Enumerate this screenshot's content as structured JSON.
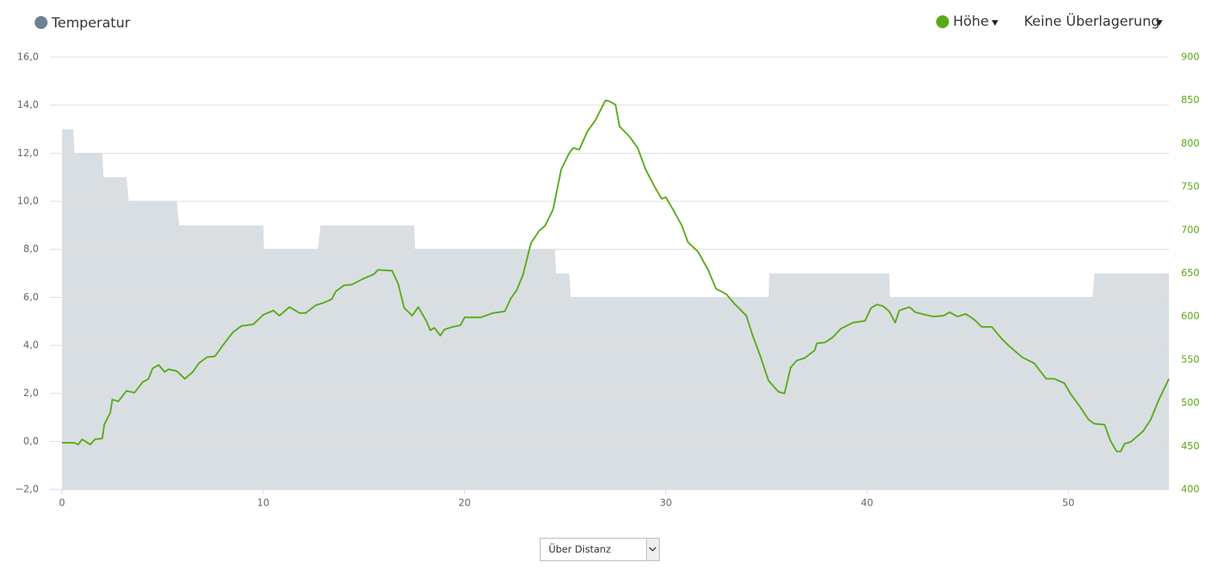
{
  "chart_data": {
    "type": "line",
    "xlim": [
      0,
      55
    ],
    "xticks": [
      0,
      10,
      20,
      30,
      40,
      50
    ],
    "ylim": [
      -2,
      16
    ],
    "yticks": [
      {
        "value": -2,
        "label": "−2,0"
      },
      {
        "value": 0,
        "label": "0,0"
      },
      {
        "value": 2,
        "label": "2,0"
      },
      {
        "value": 4,
        "label": "4,0"
      },
      {
        "value": 6,
        "label": "6,0"
      },
      {
        "value": 8,
        "label": "8,0"
      },
      {
        "value": 10,
        "label": "10,0"
      },
      {
        "value": 12,
        "label": "12,0"
      },
      {
        "value": 14,
        "label": "14,0"
      },
      {
        "value": 16,
        "label": "16,0"
      }
    ],
    "y2lim": [
      400,
      900
    ],
    "y2ticks": [
      400,
      450,
      500,
      550,
      600,
      650,
      700,
      750,
      800,
      850,
      900
    ],
    "grid": true,
    "series": [
      {
        "name": "Temperatur",
        "type": "area",
        "color": "#6e8191",
        "fill": "#d9dee3",
        "x": [
          0,
          0.56,
          0.62,
          2.0,
          2.06,
          3.2,
          3.32,
          5.7,
          5.82,
          10.0,
          10.04,
          12.72,
          12.84,
          17.5,
          17.54,
          24.5,
          24.54,
          25.2,
          25.28,
          35.1,
          35.14,
          41.1,
          41.14,
          51.2,
          51.3,
          55
        ],
        "values": [
          13,
          13,
          12,
          12,
          11,
          11,
          10,
          10,
          9,
          9,
          8,
          8,
          9,
          9,
          8,
          8,
          7,
          7,
          6,
          6,
          7,
          7,
          6,
          6,
          7,
          7
        ]
      },
      {
        "name": "Höhe",
        "color": "#5aab19",
        "axis": "y2",
        "x": [
          0,
          0.6,
          0.8,
          1.0,
          1.4,
          1.64,
          2.0,
          2.1,
          2.4,
          2.5,
          2.8,
          3.2,
          3.6,
          4.0,
          4.3,
          4.5,
          4.8,
          5.1,
          5.3,
          5.7,
          6.1,
          6.5,
          6.8,
          7.2,
          7.6,
          8.0,
          8.5,
          8.9,
          9.5,
          10.0,
          10.5,
          10.8,
          11.1,
          11.3,
          11.8,
          12.1,
          12.6,
          13.0,
          13.4,
          13.6,
          14.0,
          14.4,
          14.9,
          15.5,
          15.7,
          16.4,
          16.7,
          17.0,
          17.4,
          17.7,
          18.1,
          18.3,
          18.5,
          18.8,
          19.0,
          19.4,
          19.8,
          20.0,
          20.8,
          21.4,
          22.0,
          22.3,
          22.6,
          22.9,
          23.3,
          23.7,
          24.0,
          24.4,
          24.8,
          25.2,
          25.4,
          25.7,
          26.1,
          26.5,
          27.0,
          27.2,
          27.5,
          27.7,
          28.2,
          28.6,
          29.0,
          29.4,
          29.8,
          30.0,
          30.4,
          30.8,
          31.1,
          31.6,
          32.1,
          32.5,
          33.0,
          33.4,
          34.0,
          34.3,
          34.7,
          35.1,
          35.4,
          35.6,
          35.9,
          36.2,
          36.5,
          36.9,
          37.4,
          37.5,
          37.9,
          38.3,
          38.7,
          39.3,
          39.9,
          40.2,
          40.5,
          40.8,
          41.1,
          41.4,
          41.6,
          42.1,
          42.4,
          42.9,
          43.3,
          43.8,
          44.1,
          44.5,
          44.9,
          45.3,
          45.7,
          46.2,
          46.7,
          47.1,
          47.7,
          48.3,
          48.9,
          49.3,
          49.8,
          50.1,
          50.6,
          51.0,
          51.3,
          51.8,
          52.1,
          52.4,
          52.6,
          52.8,
          53.1,
          53.7,
          54.1,
          54.5,
          55.0
        ],
        "values": [
          454,
          454,
          452,
          458,
          452,
          458,
          459,
          475,
          489,
          504,
          502,
          514,
          512,
          524,
          528,
          540,
          544,
          536,
          539,
          537,
          528,
          536,
          546,
          553,
          554,
          567,
          582,
          589,
          591,
          602,
          607,
          601,
          607,
          611,
          604,
          604,
          613,
          616,
          620,
          629,
          636,
          637,
          643,
          649,
          654,
          653,
          638,
          610,
          601,
          611,
          595,
          584,
          587,
          578,
          585,
          588,
          590,
          599,
          599,
          604,
          606,
          621,
          631,
          648,
          685,
          699,
          705,
          724,
          770,
          789,
          795,
          793,
          814,
          827,
          850,
          849,
          845,
          820,
          808,
          795,
          770,
          752,
          736,
          738,
          722,
          705,
          686,
          675,
          654,
          632,
          626,
          615,
          601,
          579,
          554,
          526,
          518,
          513,
          511,
          541,
          549,
          552,
          561,
          569,
          570,
          576,
          586,
          593,
          595,
          610,
          614,
          612,
          606,
          593,
          607,
          611,
          605,
          602,
          600,
          601,
          605,
          600,
          603,
          597,
          588,
          588,
          574,
          565,
          553,
          546,
          528,
          528,
          523,
          511,
          495,
          481,
          476,
          475,
          456,
          444,
          444,
          453,
          455,
          467,
          481,
          504,
          528
        ]
      }
    ]
  },
  "controls": {
    "overlay": "Keine Überlagerung",
    "x_mode": "Über Distanz"
  }
}
